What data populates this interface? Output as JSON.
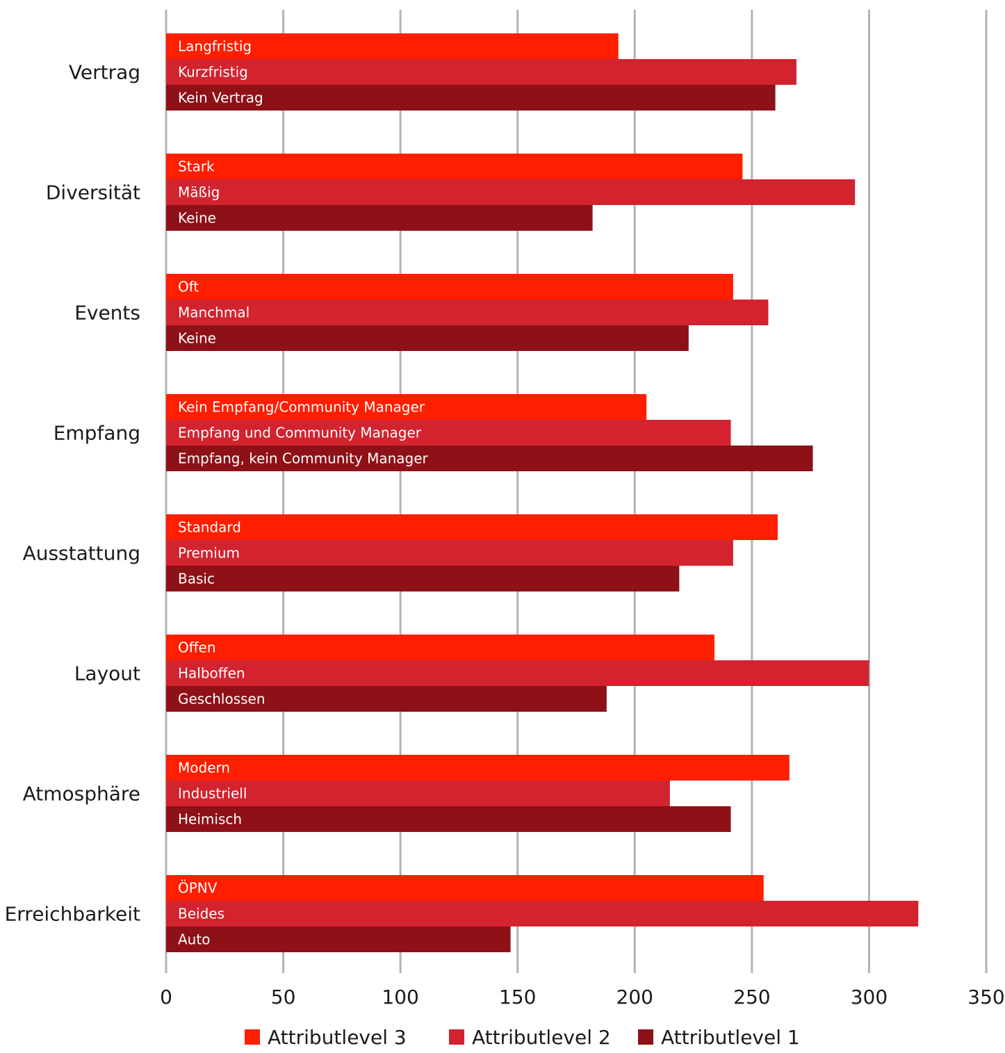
{
  "chart_data": {
    "type": "bar",
    "orientation": "horizontal",
    "xlim": [
      0,
      350
    ],
    "ticks": [
      0,
      50,
      100,
      150,
      200,
      250,
      300,
      350
    ],
    "grid": true,
    "legend_position": "bottom",
    "series": [
      {
        "name": "Attributlevel 3",
        "color": "#ff1e00"
      },
      {
        "name": "Attributlevel 2",
        "color": "#d2232f"
      },
      {
        "name": "Attributlevel 1",
        "color": "#8e1117"
      }
    ],
    "categories": [
      {
        "name": "Vertrag",
        "levels": [
          "Langfristig",
          "Kurzfristig",
          "Kein Vertrag"
        ],
        "values": [
          193,
          269,
          260
        ]
      },
      {
        "name": "Diversität",
        "levels": [
          "Stark",
          "Mäßig",
          "Keine"
        ],
        "values": [
          246,
          294,
          182
        ]
      },
      {
        "name": "Events",
        "levels": [
          "Oft",
          "Manchmal",
          "Keine"
        ],
        "values": [
          242,
          257,
          223
        ]
      },
      {
        "name": "Empfang",
        "levels": [
          "Kein Empfang/Community Manager",
          "Empfang und Community Manager",
          "Empfang, kein Community Manager"
        ],
        "values": [
          205,
          241,
          276
        ]
      },
      {
        "name": "Ausstattung",
        "levels": [
          "Standard",
          "Premium",
          "Basic"
        ],
        "values": [
          261,
          242,
          219
        ]
      },
      {
        "name": "Layout",
        "levels": [
          "Offen",
          "Halboffen",
          "Geschlossen"
        ],
        "values": [
          234,
          300,
          188
        ]
      },
      {
        "name": "Atmosphäre",
        "levels": [
          "Modern",
          "Industriell",
          "Heimisch"
        ],
        "values": [
          266,
          215,
          241
        ]
      },
      {
        "name": "Erreichbarkeit",
        "levels": [
          "ÖPNV",
          "Beides",
          "Auto"
        ],
        "values": [
          255,
          321,
          147
        ]
      }
    ]
  }
}
